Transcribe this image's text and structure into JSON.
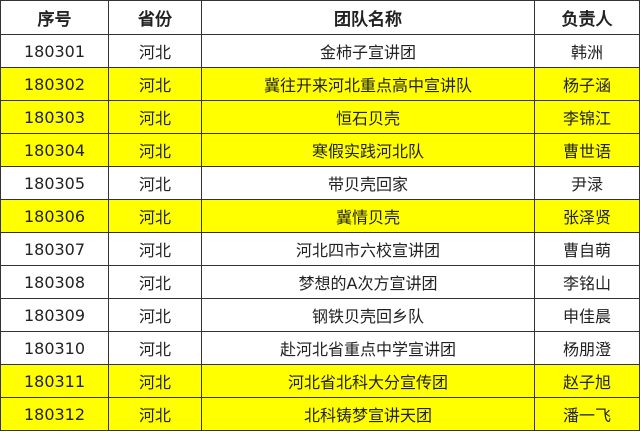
{
  "headers": [
    "序号",
    "省份",
    "团队名称",
    "负责人"
  ],
  "highlight_color": "#ffff00",
  "rows": [
    {
      "id": "180301",
      "province": "河北",
      "team": "金柿子宣讲团",
      "leader": "韩洲",
      "highlighted": false
    },
    {
      "id": "180302",
      "province": "河北",
      "team": "冀往开来河北重点高中宣讲队",
      "leader": "杨子涵",
      "highlighted": true
    },
    {
      "id": "180303",
      "province": "河北",
      "team": "恒石贝壳",
      "leader": "李锦江",
      "highlighted": true
    },
    {
      "id": "180304",
      "province": "河北",
      "team": "寒假实践河北队",
      "leader": "曹世语",
      "highlighted": true
    },
    {
      "id": "180305",
      "province": "河北",
      "team": "带贝壳回家",
      "leader": "尹渌",
      "highlighted": false
    },
    {
      "id": "180306",
      "province": "河北",
      "team": "冀情贝壳",
      "leader": "张泽贤",
      "highlighted": true
    },
    {
      "id": "180307",
      "province": "河北",
      "team": "河北四市六校宣讲团",
      "leader": "曹自萌",
      "highlighted": false
    },
    {
      "id": "180308",
      "province": "河北",
      "team": "梦想的A次方宣讲团",
      "leader": "李铭山",
      "highlighted": false
    },
    {
      "id": "180309",
      "province": "河北",
      "team": "钢铁贝壳回乡队",
      "leader": "申佳晨",
      "highlighted": false
    },
    {
      "id": "180310",
      "province": "河北",
      "team": "赴河北省重点中学宣讲团",
      "leader": "杨朋澄",
      "highlighted": false
    },
    {
      "id": "180311",
      "province": "河北",
      "team": "河北省北科大分宣传团",
      "leader": "赵子旭",
      "highlighted": true
    },
    {
      "id": "180312",
      "province": "河北",
      "team": "北科铸梦宣讲天团",
      "leader": "潘一飞",
      "highlighted": true
    }
  ]
}
